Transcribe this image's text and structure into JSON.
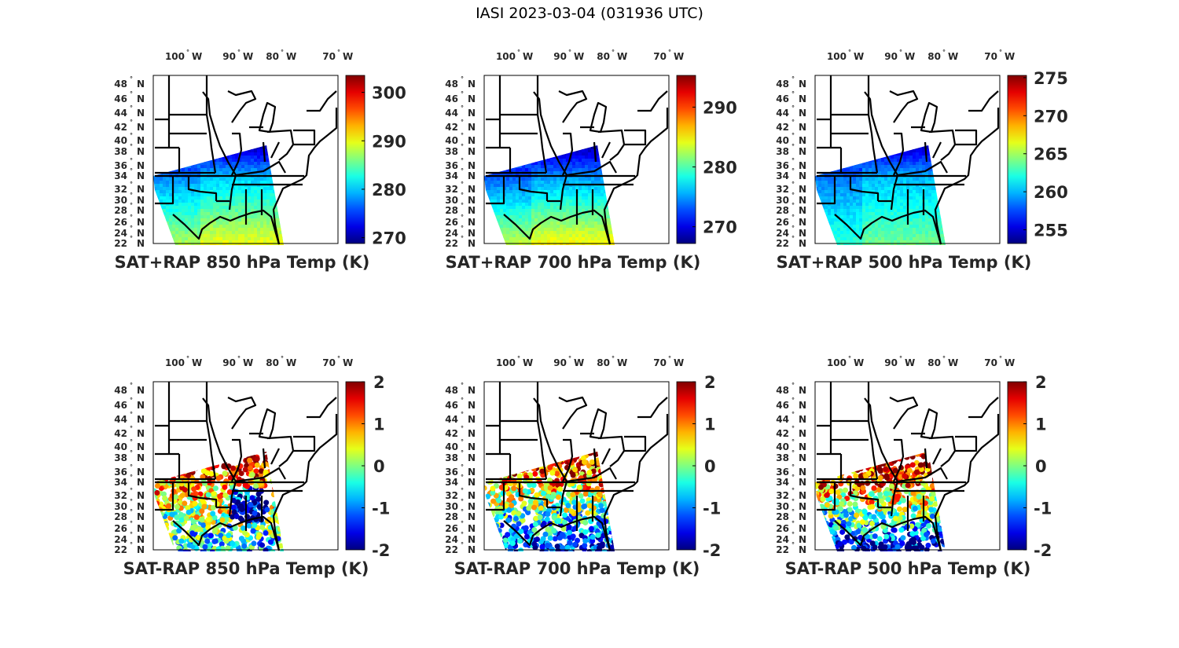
{
  "figure_title": "IASI 2023-03-04 (031936 UTC)",
  "lon_ticks": [
    "100",
    "90",
    "80",
    "70"
  ],
  "lon_suffix": "W",
  "lat_ticks": [
    "48",
    "46",
    "44",
    "42",
    "40",
    "38",
    "36",
    "34",
    "32",
    "30",
    "28",
    "26",
    "24",
    "22"
  ],
  "lat_suffix": "N",
  "degree_symbol": "°",
  "chart_data": [
    {
      "type": "heatmap",
      "title": "SAT+RAP 850 hPa Temp (K)",
      "kind": "abs",
      "clim": [
        268.8,
        303.5
      ],
      "cbar_ticks": [
        270,
        280,
        290,
        300
      ],
      "field": {
        "north": 271,
        "mid": 280,
        "south": 290
      }
    },
    {
      "type": "heatmap",
      "title": "SAT+RAP 700 hPa Temp (K)",
      "kind": "abs",
      "clim": [
        267.2,
        295.3
      ],
      "cbar_ticks": [
        270,
        280,
        290
      ],
      "field": {
        "north": 268.5,
        "mid": 275,
        "south": 285
      }
    },
    {
      "type": "heatmap",
      "title": "SAT+RAP 500 hPa Temp (K)",
      "kind": "abs",
      "clim": [
        253.2,
        275.3
      ],
      "cbar_ticks": [
        255,
        260,
        265,
        270,
        275
      ],
      "field": {
        "north": 255,
        "mid": 260,
        "south": 264
      }
    },
    {
      "type": "heatmap",
      "title": "SAT-RAP 850 hPa Temp (K)",
      "kind": "diff",
      "clim": [
        -2,
        2
      ],
      "cbar_ticks": [
        -2,
        -1,
        0,
        1,
        2
      ],
      "field": {
        "north": 2,
        "mid": 1,
        "south": -0.8
      }
    },
    {
      "type": "heatmap",
      "title": "SAT-RAP 700 hPa Temp (K)",
      "kind": "diff",
      "clim": [
        -2,
        2
      ],
      "cbar_ticks": [
        -2,
        -1,
        0,
        1,
        2
      ],
      "field": {
        "north": 1.6,
        "mid": 0.8,
        "south": -1.6
      }
    },
    {
      "type": "heatmap",
      "title": "SAT-RAP 500 hPa Temp (K)",
      "kind": "diff",
      "clim": [
        -2,
        2
      ],
      "cbar_ticks": [
        -2,
        -1,
        0,
        1,
        2
      ],
      "field": {
        "north": 1.8,
        "mid": 1.2,
        "south": -1.8
      }
    }
  ]
}
